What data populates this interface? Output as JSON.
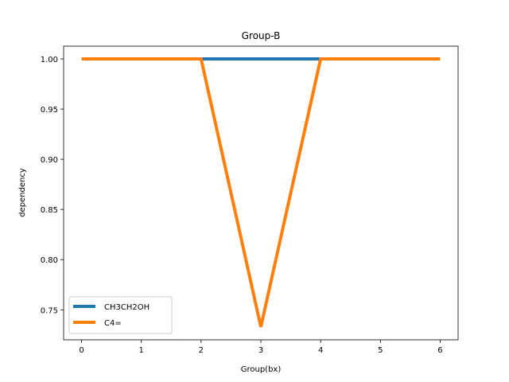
{
  "chart_data": {
    "type": "line",
    "title": "Group-B",
    "xlabel": "Group(bx)",
    "ylabel": "dependency",
    "x": [
      0,
      1,
      2,
      3,
      4,
      5,
      6
    ],
    "xlim": [
      -0.3,
      6.3
    ],
    "ylim": [
      0.7201,
      1.0127
    ],
    "xticks": [
      0,
      1,
      2,
      3,
      4,
      5,
      6
    ],
    "yticks": [
      0.75,
      0.8,
      0.85,
      0.9,
      0.95,
      1.0
    ],
    "ytick_labels": [
      "0.75",
      "0.80",
      "0.85",
      "0.90",
      "0.95",
      "1.00"
    ],
    "grid": false,
    "legend_position": "lower-left",
    "series": [
      {
        "name": "CH3CH2OH",
        "color": "#1f77b4",
        "values": [
          1.0,
          1.0,
          1.0,
          1.0,
          1.0,
          1.0,
          1.0
        ]
      },
      {
        "name": "C4=",
        "color": "#ff7f0e",
        "values": [
          1.0,
          1.0,
          1.0,
          0.733,
          1.0,
          1.0,
          1.0
        ]
      }
    ]
  }
}
